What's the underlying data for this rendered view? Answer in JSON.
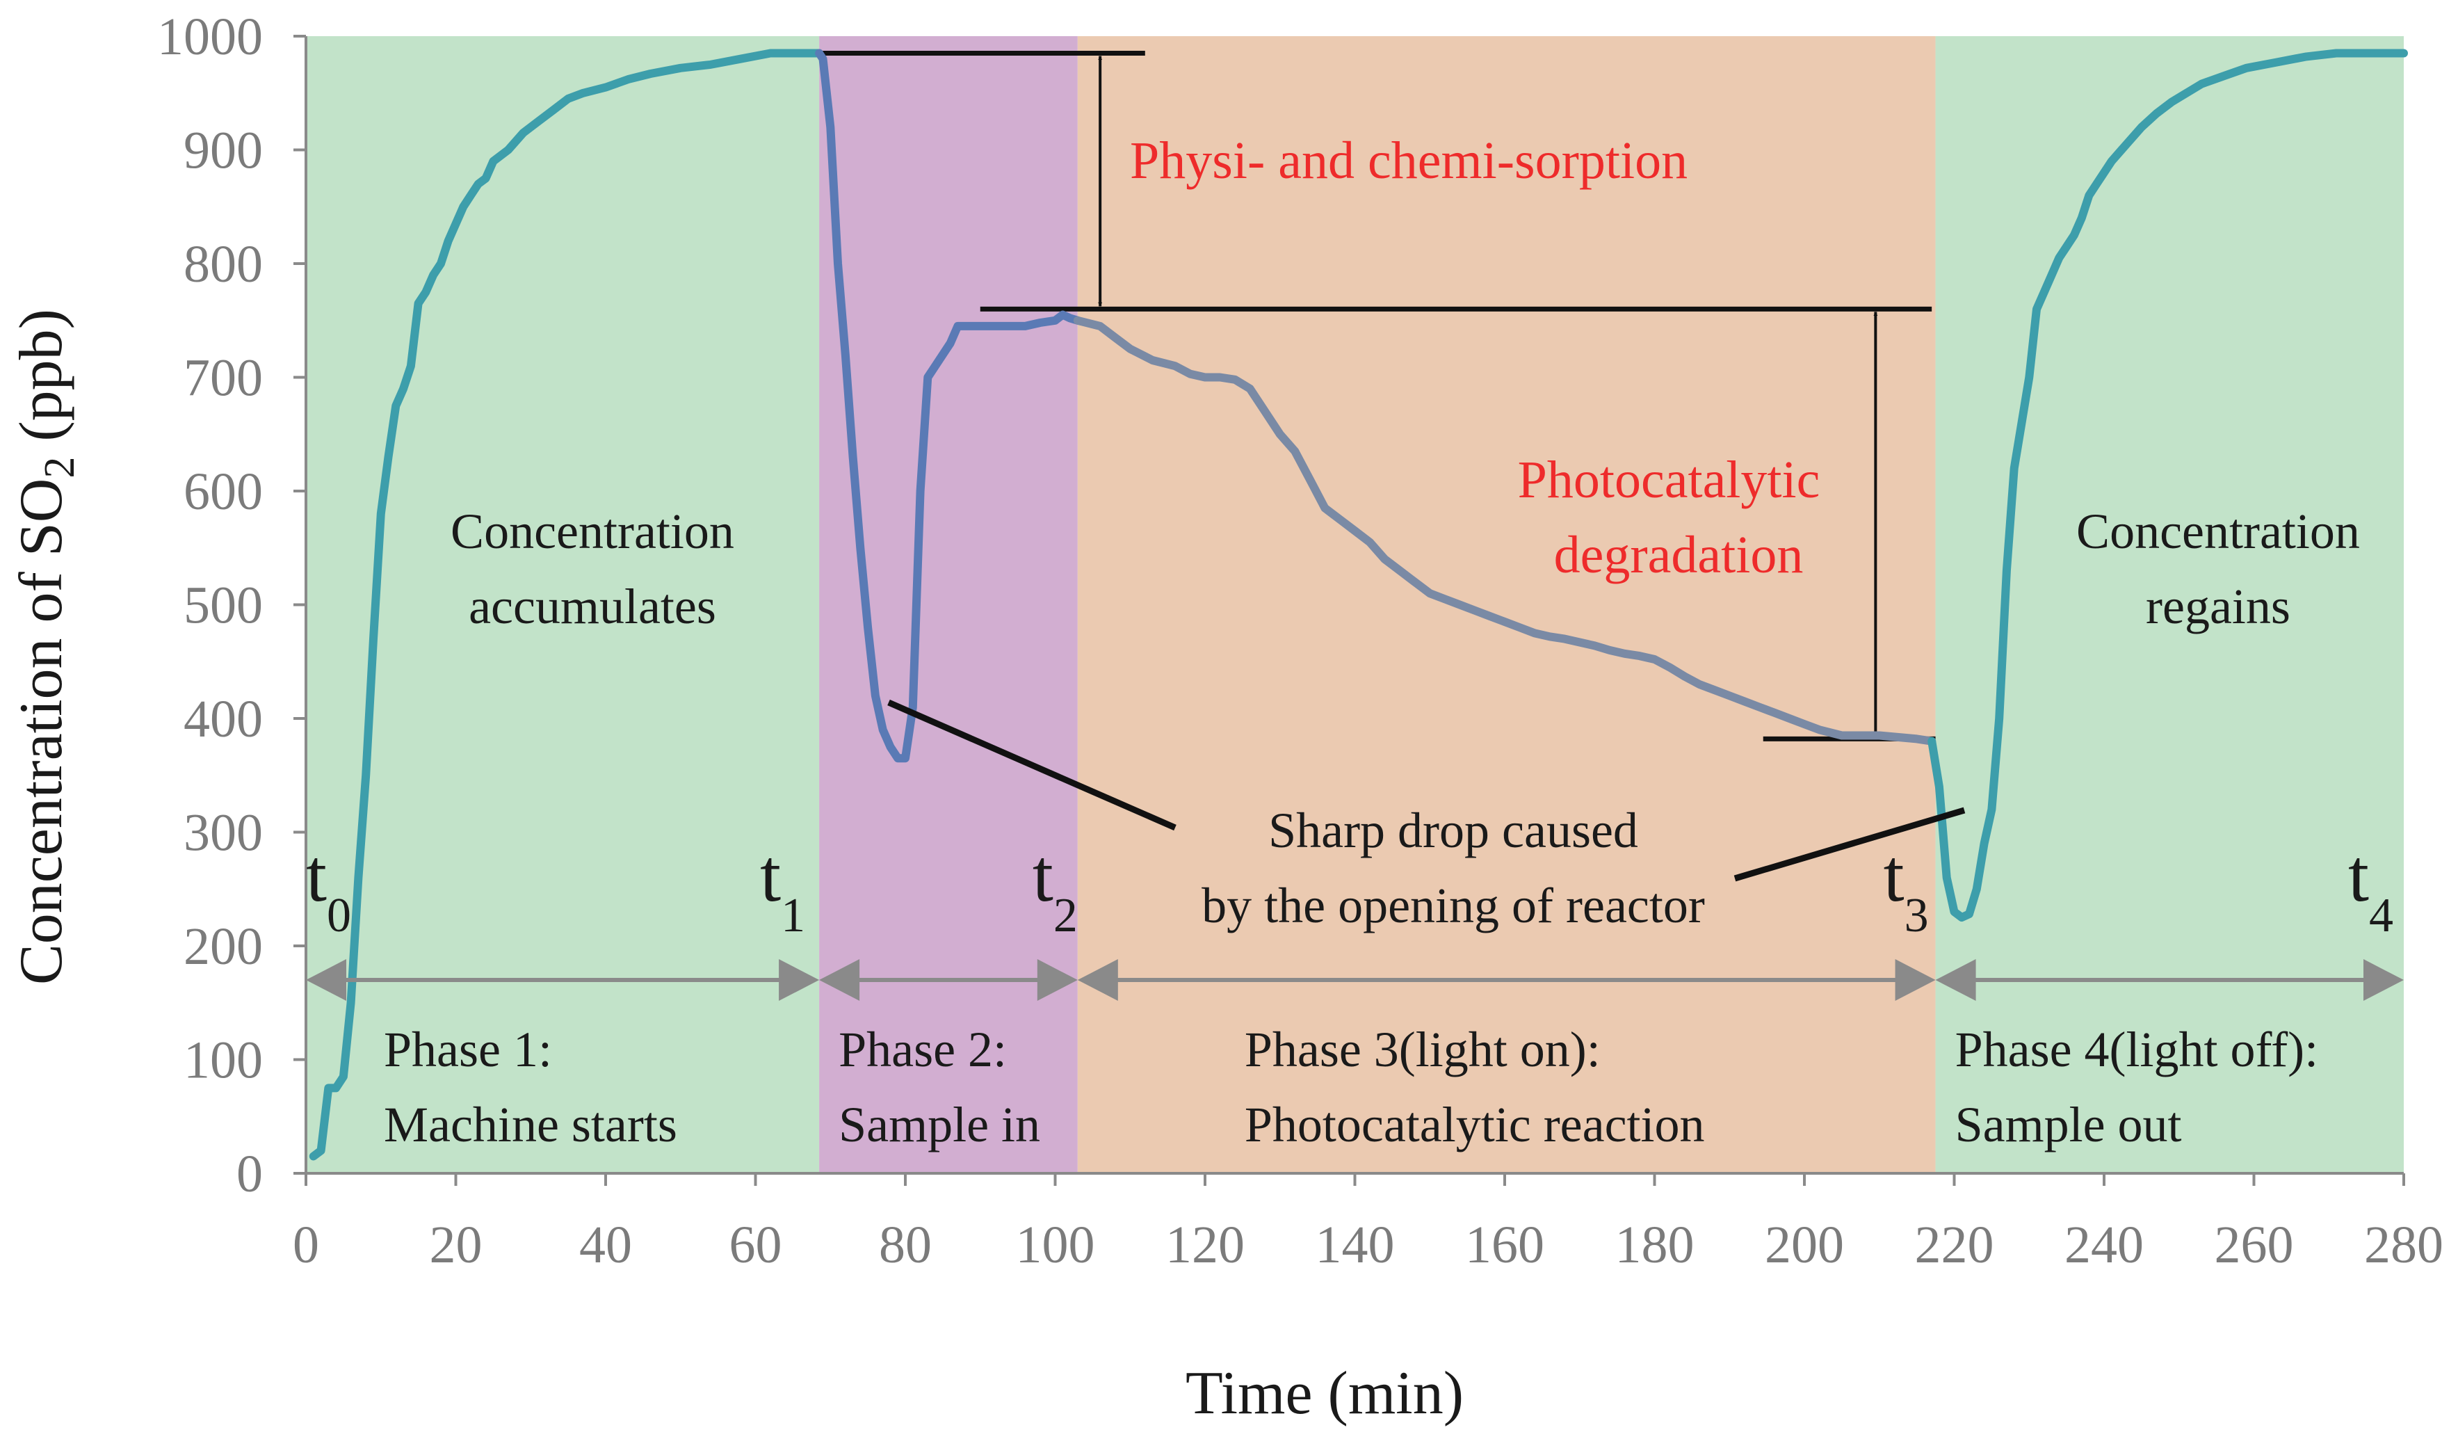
{
  "chart_data": {
    "type": "line",
    "title": "",
    "xlabel": "Time (min)",
    "ylabel_prefix": "Concentration of SO",
    "ylabel_sub": "2",
    "ylabel_suffix": " (ppb)",
    "xlim": [
      0,
      280
    ],
    "ylim": [
      0,
      1000
    ],
    "x_ticks": [
      0,
      20,
      40,
      60,
      80,
      100,
      120,
      140,
      160,
      180,
      200,
      220,
      240,
      260,
      280
    ],
    "y_ticks": [
      0,
      100,
      200,
      300,
      400,
      500,
      600,
      700,
      800,
      900,
      1000
    ],
    "grid": false,
    "phases": [
      {
        "name": "phase-1",
        "start": 0,
        "end": 68.5,
        "color": "#c2e3c9",
        "label_line1": "Phase 1:",
        "label_line2": "Machine starts"
      },
      {
        "name": "phase-2",
        "start": 68.5,
        "end": 103,
        "color": "#d2aed1",
        "label_line1": "Phase 2:",
        "label_line2": "Sample in"
      },
      {
        "name": "phase-3",
        "start": 103,
        "end": 217.5,
        "color": "#ebcab1",
        "label_line1": "Phase 3(light on):",
        "label_line2": "Photocatalytic reaction"
      },
      {
        "name": "phase-4",
        "start": 217.5,
        "end": 280,
        "color": "#c2e3c9",
        "label_line1": "Phase 4(light off):",
        "label_line2": "Sample out"
      }
    ],
    "time_markers": [
      {
        "label": "t",
        "sub": "0",
        "x": 0
      },
      {
        "label": "t",
        "sub": "1",
        "x": 68.5
      },
      {
        "label": "t",
        "sub": "2",
        "x": 103
      },
      {
        "label": "t",
        "sub": "3",
        "x": 217.5
      },
      {
        "label": "t",
        "sub": "4",
        "x": 280
      }
    ],
    "series": [
      {
        "name": "SO2 concentration",
        "segments": [
          {
            "color": "#3d9eab",
            "points": [
              [
                1,
                15
              ],
              [
                2,
                20
              ],
              [
                3,
                75
              ],
              [
                4,
                75
              ],
              [
                5,
                85
              ],
              [
                6,
                150
              ],
              [
                7,
                260
              ],
              [
                8,
                350
              ],
              [
                9,
                470
              ],
              [
                10,
                580
              ],
              [
                11,
                630
              ],
              [
                12,
                675
              ],
              [
                13,
                690
              ],
              [
                14,
                710
              ],
              [
                15,
                765
              ],
              [
                16,
                775
              ],
              [
                17,
                790
              ],
              [
                18,
                800
              ],
              [
                19,
                820
              ],
              [
                20,
                835
              ],
              [
                21,
                850
              ],
              [
                22,
                860
              ],
              [
                23,
                870
              ],
              [
                24,
                875
              ],
              [
                25,
                890
              ],
              [
                27,
                900
              ],
              [
                29,
                915
              ],
              [
                31,
                925
              ],
              [
                33,
                935
              ],
              [
                35,
                945
              ],
              [
                37,
                950
              ],
              [
                40,
                955
              ],
              [
                43,
                962
              ],
              [
                46,
                967
              ],
              [
                50,
                972
              ],
              [
                54,
                975
              ],
              [
                58,
                980
              ],
              [
                62,
                985
              ],
              [
                66,
                985
              ],
              [
                68.5,
                985
              ]
            ]
          },
          {
            "color": "#5a7ab5",
            "points": [
              [
                68.5,
                985
              ],
              [
                69,
                980
              ],
              [
                70,
                920
              ],
              [
                71,
                800
              ],
              [
                72,
                720
              ],
              [
                73,
                630
              ],
              [
                74,
                550
              ],
              [
                75,
                480
              ],
              [
                76,
                420
              ],
              [
                77,
                390
              ],
              [
                78,
                375
              ],
              [
                79,
                365
              ],
              [
                80,
                365
              ],
              [
                81,
                410
              ],
              [
                82,
                600
              ],
              [
                83,
                700
              ],
              [
                84,
                710
              ],
              [
                85,
                720
              ],
              [
                86,
                730
              ],
              [
                87,
                745
              ],
              [
                88,
                745
              ],
              [
                90,
                745
              ],
              [
                93,
                745
              ],
              [
                96,
                745
              ],
              [
                98,
                748
              ],
              [
                100,
                750
              ],
              [
                101,
                755
              ],
              [
                102,
                752
              ],
              [
                103,
                750
              ]
            ]
          },
          {
            "color": "#7a8aa5",
            "points": [
              [
                103,
                750
              ],
              [
                106,
                745
              ],
              [
                108,
                735
              ],
              [
                110,
                725
              ],
              [
                113,
                715
              ],
              [
                116,
                710
              ],
              [
                118,
                703
              ],
              [
                120,
                700
              ],
              [
                122,
                700
              ],
              [
                124,
                698
              ],
              [
                126,
                690
              ],
              [
                128,
                670
              ],
              [
                130,
                650
              ],
              [
                132,
                635
              ],
              [
                134,
                610
              ],
              [
                136,
                585
              ],
              [
                138,
                575
              ],
              [
                140,
                565
              ],
              [
                142,
                555
              ],
              [
                144,
                540
              ],
              [
                146,
                530
              ],
              [
                148,
                520
              ],
              [
                150,
                510
              ],
              [
                152,
                505
              ],
              [
                154,
                500
              ],
              [
                156,
                495
              ],
              [
                158,
                490
              ],
              [
                160,
                485
              ],
              [
                162,
                480
              ],
              [
                164,
                475
              ],
              [
                166,
                472
              ],
              [
                168,
                470
              ],
              [
                170,
                467
              ],
              [
                172,
                464
              ],
              [
                174,
                460
              ],
              [
                176,
                457
              ],
              [
                178,
                455
              ],
              [
                180,
                452
              ],
              [
                182,
                445
              ],
              [
                184,
                437
              ],
              [
                186,
                430
              ],
              [
                188,
                425
              ],
              [
                190,
                420
              ],
              [
                192,
                415
              ],
              [
                194,
                410
              ],
              [
                196,
                405
              ],
              [
                198,
                400
              ],
              [
                200,
                395
              ],
              [
                202,
                390
              ],
              [
                205,
                385
              ],
              [
                210,
                385
              ],
              [
                215,
                382
              ],
              [
                217,
                380
              ]
            ]
          },
          {
            "color": "#3d9eab",
            "points": [
              [
                217,
                380
              ],
              [
                218,
                340
              ],
              [
                219,
                260
              ],
              [
                220,
                230
              ],
              [
                221,
                225
              ],
              [
                222,
                228
              ],
              [
                223,
                250
              ],
              [
                224,
                290
              ],
              [
                225,
                320
              ],
              [
                226,
                400
              ],
              [
                227,
                530
              ],
              [
                228,
                620
              ],
              [
                229,
                660
              ],
              [
                230,
                700
              ],
              [
                231,
                760
              ],
              [
                232,
                775
              ],
              [
                233,
                790
              ],
              [
                234,
                805
              ],
              [
                235,
                815
              ],
              [
                236,
                825
              ],
              [
                237,
                840
              ],
              [
                238,
                860
              ],
              [
                239,
                870
              ],
              [
                240,
                880
              ],
              [
                241,
                890
              ],
              [
                243,
                905
              ],
              [
                245,
                920
              ],
              [
                247,
                932
              ],
              [
                249,
                942
              ],
              [
                251,
                950
              ],
              [
                253,
                958
              ],
              [
                256,
                965
              ],
              [
                259,
                972
              ],
              [
                263,
                977
              ],
              [
                267,
                982
              ],
              [
                271,
                985
              ],
              [
                275,
                985
              ],
              [
                280,
                985
              ]
            ]
          }
        ]
      }
    ],
    "annotations": {
      "sorption_label": "Physi- and chemi-sorption",
      "degradation_line1": "Photocatalytic",
      "degradation_line2": "degradation",
      "left_text_line1": "Concentration",
      "left_text_line2": "accumulates",
      "right_text_line1": "Concentration",
      "right_text_line2": "regains",
      "drop_line1": "Sharp drop caused",
      "drop_line2": "by the opening of reactor",
      "level_top": 985,
      "level_mid": 760,
      "level_low": 382
    }
  }
}
